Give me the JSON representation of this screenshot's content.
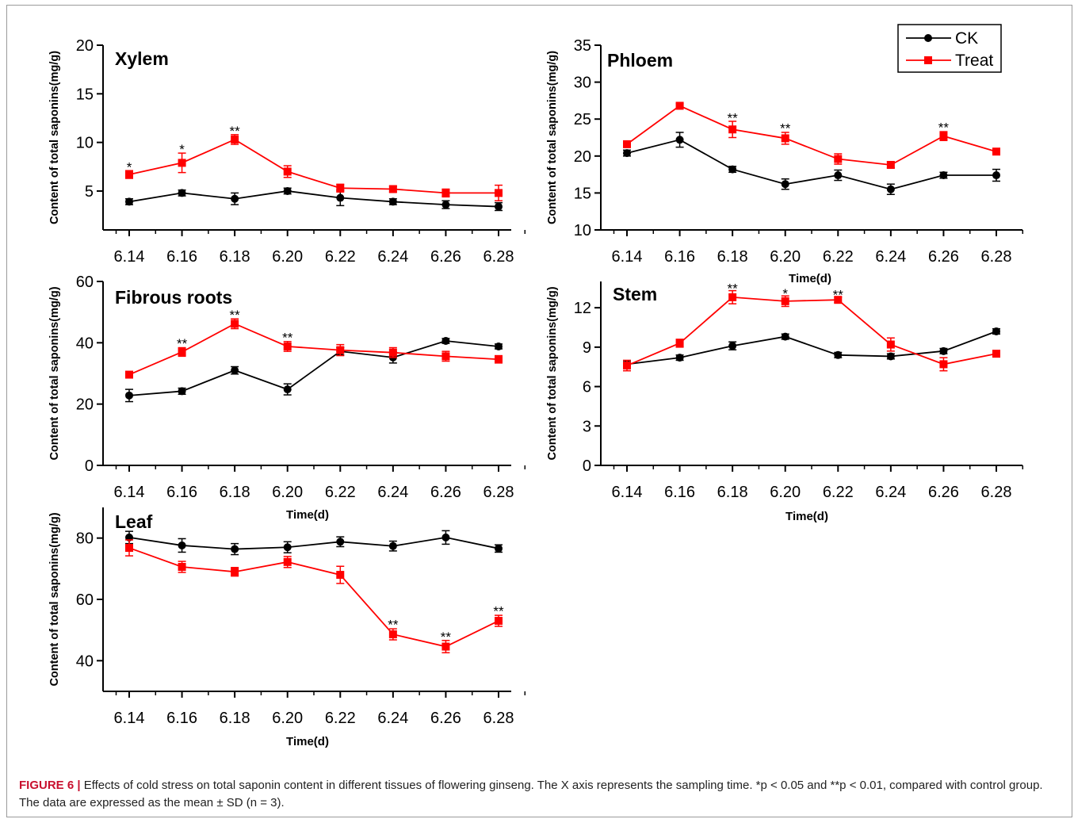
{
  "figure": {
    "caption_label": "FIGURE 6 |",
    "caption_text": " Effects of cold stress on total saponin content in different tissues of flowering ginseng. The X axis represents the sampling time. *p < 0.05 and **p < 0.01, compared with control group. The data are expressed as the mean ± SD (n = 3).",
    "legend": [
      "CK",
      "Treat"
    ],
    "colors": {
      "CK": "#000000",
      "Treat": "#ff0000"
    }
  },
  "chart_data": [
    {
      "id": "xylem",
      "type": "line",
      "title": "Xylem",
      "xlabel": "",
      "ylabel": "Content of total saponins(mg/g)",
      "categories": [
        "6.14",
        "6.16",
        "6.18",
        "6.20",
        "6.22",
        "6.24",
        "6.26",
        "6.28"
      ],
      "ylim": [
        1,
        20
      ],
      "yticks": [
        5,
        10,
        15,
        20
      ],
      "series": [
        {
          "name": "CK",
          "values": [
            3.9,
            4.8,
            4.2,
            5.0,
            4.3,
            3.9,
            3.6,
            3.4
          ],
          "errors": [
            0.3,
            0.3,
            0.6,
            0.3,
            0.8,
            0.3,
            0.4,
            0.4
          ]
        },
        {
          "name": "Treat",
          "values": [
            6.7,
            7.9,
            10.3,
            7.0,
            5.3,
            5.2,
            4.8,
            4.8
          ],
          "errors": [
            0.4,
            1.0,
            0.5,
            0.6,
            0.4,
            0.3,
            0.4,
            0.8
          ]
        }
      ],
      "annotations": [
        {
          "x": "6.14",
          "label": "*",
          "y": 7.5
        },
        {
          "x": "6.16",
          "label": "*",
          "y": 9.3
        },
        {
          "x": "6.18",
          "label": "**",
          "y": 11.2
        }
      ]
    },
    {
      "id": "phloem",
      "type": "line",
      "title": "Phloem",
      "xlabel": "Time(d)",
      "ylabel": "Content of total saponins(mg/g)",
      "categories": [
        "6.14",
        "6.16",
        "6.18",
        "6.20",
        "6.22",
        "6.24",
        "6.26",
        "6.28"
      ],
      "ylim": [
        10,
        35
      ],
      "yticks": [
        10,
        15,
        20,
        25,
        30,
        35
      ],
      "series": [
        {
          "name": "CK",
          "values": [
            20.4,
            22.2,
            18.2,
            16.2,
            17.4,
            15.5,
            17.4,
            17.4
          ],
          "errors": [
            0.4,
            1.0,
            0.4,
            0.7,
            0.7,
            0.7,
            0.4,
            0.8
          ]
        },
        {
          "name": "Treat",
          "values": [
            21.6,
            26.8,
            23.6,
            22.4,
            19.6,
            18.8,
            22.7,
            20.6
          ],
          "errors": [
            0.4,
            0.3,
            1.1,
            0.8,
            0.7,
            0.4,
            0.6,
            0.4
          ]
        }
      ],
      "annotations": [
        {
          "x": "6.18",
          "label": "**",
          "y": 25.2
        },
        {
          "x": "6.20",
          "label": "**",
          "y": 23.8
        },
        {
          "x": "6.26",
          "label": "**",
          "y": 23.9
        }
      ]
    },
    {
      "id": "fibrous",
      "type": "line",
      "title": "Fibrous roots",
      "xlabel": "Time(d)",
      "ylabel": "Content of total saponins(mg/g)",
      "categories": [
        "6.14",
        "6.16",
        "6.18",
        "6.20",
        "6.22",
        "6.24",
        "6.26",
        "6.28"
      ],
      "ylim": [
        0,
        60
      ],
      "yticks": [
        0,
        20,
        40,
        60
      ],
      "series": [
        {
          "name": "CK",
          "values": [
            22.8,
            24.2,
            31.0,
            24.8,
            37.2,
            35.2,
            40.6,
            38.8
          ],
          "errors": [
            2.0,
            1.0,
            1.2,
            1.8,
            1.2,
            1.8,
            0.8,
            0.8
          ]
        },
        {
          "name": "Treat",
          "values": [
            29.6,
            37.0,
            46.2,
            38.8,
            37.6,
            36.8,
            35.6,
            34.6
          ],
          "errors": [
            0.8,
            1.4,
            1.6,
            1.6,
            1.8,
            1.6,
            1.6,
            1.2
          ]
        }
      ],
      "annotations": [
        {
          "x": "6.16",
          "label": "**",
          "y": 39.8
        },
        {
          "x": "6.18",
          "label": "**",
          "y": 49.2
        },
        {
          "x": "6.20",
          "label": "**",
          "y": 41.8
        }
      ]
    },
    {
      "id": "stem",
      "type": "line",
      "title": "Stem",
      "xlabel": "Time(d)",
      "ylabel": "Content of total saponins(mg/g)",
      "categories": [
        "6.14",
        "6.16",
        "6.18",
        "6.20",
        "6.22",
        "6.24",
        "6.26",
        "6.28"
      ],
      "ylim": [
        0,
        14
      ],
      "yticks": [
        0,
        3,
        6,
        9,
        12
      ],
      "series": [
        {
          "name": "CK",
          "values": [
            7.7,
            8.2,
            9.1,
            9.8,
            8.4,
            8.3,
            8.7,
            10.2
          ],
          "errors": [
            0.2,
            0.2,
            0.3,
            0.2,
            0.2,
            0.2,
            0.2,
            0.2
          ]
        },
        {
          "name": "Treat",
          "values": [
            7.6,
            9.3,
            12.8,
            12.5,
            12.6,
            9.2,
            7.7,
            8.5
          ],
          "errors": [
            0.4,
            0.3,
            0.5,
            0.4,
            0.2,
            0.5,
            0.5,
            0.2
          ]
        }
      ],
      "annotations": [
        {
          "x": "6.18",
          "label": "**",
          "y": 13.5
        },
        {
          "x": "6.20",
          "label": "*",
          "y": 13.1
        },
        {
          "x": "6.22",
          "label": "**",
          "y": 13.0
        }
      ]
    },
    {
      "id": "leaf",
      "type": "line",
      "title": "Leaf",
      "xlabel": "Time(d)",
      "ylabel": "Content of total saponins(mg/g)",
      "categories": [
        "6.14",
        "6.16",
        "6.18",
        "6.20",
        "6.22",
        "6.24",
        "6.26",
        "6.28"
      ],
      "ylim": [
        30,
        90
      ],
      "yticks": [
        40,
        60,
        80
      ],
      "series": [
        {
          "name": "CK",
          "values": [
            80.2,
            77.6,
            76.4,
            77.0,
            78.8,
            77.4,
            80.2,
            76.6
          ],
          "errors": [
            2.0,
            2.2,
            1.8,
            1.8,
            1.6,
            1.6,
            2.2,
            1.2
          ]
        },
        {
          "name": "Treat",
          "values": [
            76.8,
            70.6,
            69.0,
            72.2,
            68.0,
            48.6,
            44.6,
            53.0
          ],
          "errors": [
            2.6,
            1.8,
            1.4,
            1.8,
            2.8,
            1.8,
            2.0,
            1.8
          ]
        }
      ],
      "annotations": [
        {
          "x": "6.24",
          "label": "**",
          "y": 51.8
        },
        {
          "x": "6.26",
          "label": "**",
          "y": 47.8
        },
        {
          "x": "6.28",
          "label": "**",
          "y": 56.2
        }
      ]
    }
  ]
}
